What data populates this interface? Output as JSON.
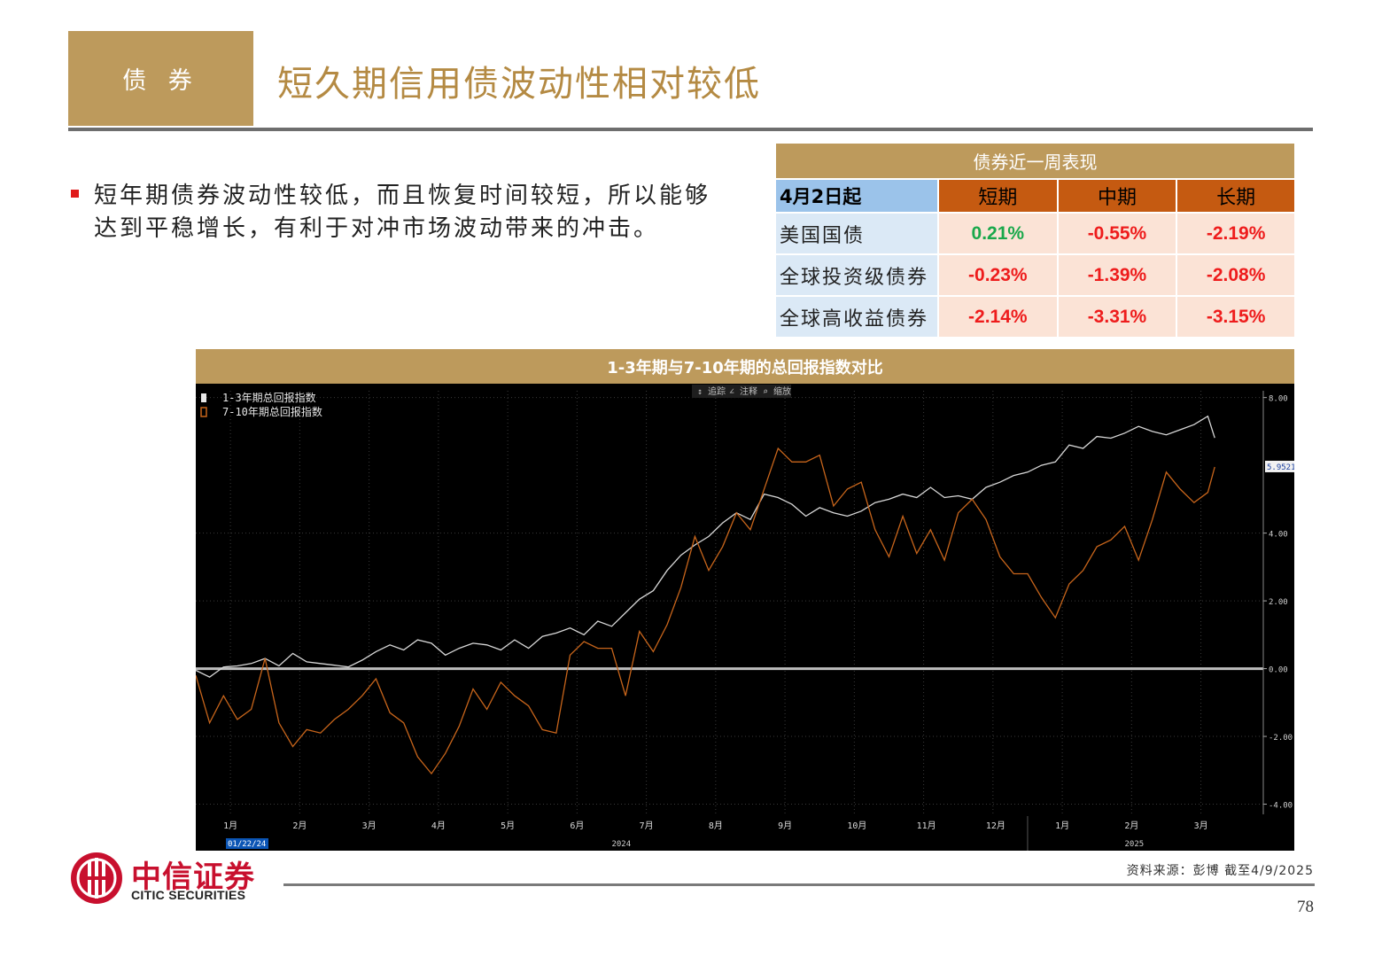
{
  "header": {
    "section": "债 券",
    "title": "短久期信用债波动性相对较低"
  },
  "bullet": {
    "text": "短年期债券波动性较低，而且恢复时间较短，所以能够达到平稳增长，有利于对冲市场波动带来的冲击。"
  },
  "table": {
    "title": "债券近一周表现",
    "date_label": "4月2日起",
    "columns": [
      "短期",
      "中期",
      "长期"
    ],
    "rows": [
      {
        "name": "美国国债",
        "values": [
          "0.21%",
          "-0.55%",
          "-2.19%"
        ]
      },
      {
        "name": "全球投资级债券",
        "values": [
          "-0.23%",
          "-1.39%",
          "-2.08%"
        ]
      },
      {
        "name": "全球高收益债券",
        "values": [
          "-2.14%",
          "-3.31%",
          "-3.15%"
        ]
      }
    ]
  },
  "toolbar": {
    "track": "追踪",
    "annotate": "注释",
    "zoom": "缩放"
  },
  "chart_data": {
    "type": "line",
    "title": "1-3年期与7-10年期的总回报指数对比",
    "x_labels": [
      "1月",
      "2月",
      "3月",
      "4月",
      "5月",
      "6月",
      "7月",
      "8月",
      "9月",
      "10月",
      "11月",
      "12月",
      "1月",
      "2月",
      "3月"
    ],
    "year_labels": [
      "2024",
      "2025"
    ],
    "date_tag": "01/22/24",
    "y_ticks": [
      "8.00",
      "4.00",
      "2.00",
      "0.00",
      "-2.00",
      "-4.00"
    ],
    "ylim": [
      -4.3,
      8.2
    ],
    "last_value_label": "5.9521",
    "grid": true,
    "legend_position": "top-left",
    "colors": {
      "series1": "#d8d8d8",
      "series2": "#c8651b",
      "zero": "#bdbdbd",
      "grid": "#3a3a3a"
    },
    "series": [
      {
        "name": "1-3年期总回报指数",
        "x": [
          0,
          0.2,
          0.4,
          0.6,
          0.8,
          1.0,
          1.2,
          1.4,
          1.6,
          1.8,
          2.0,
          2.2,
          2.4,
          2.6,
          2.8,
          3.0,
          3.2,
          3.4,
          3.6,
          3.8,
          4.0,
          4.2,
          4.4,
          4.6,
          4.8,
          5.0,
          5.2,
          5.4,
          5.6,
          5.8,
          6.0,
          6.2,
          6.4,
          6.6,
          6.8,
          7.0,
          7.2,
          7.4,
          7.6,
          7.8,
          8.0,
          8.2,
          8.4,
          8.6,
          8.8,
          9.0,
          9.2,
          9.4,
          9.6,
          9.8,
          10.0,
          10.2,
          10.4,
          10.6,
          10.8,
          11.0,
          11.2,
          11.4,
          11.6,
          11.8,
          12.0,
          12.2,
          12.4,
          12.6,
          12.8,
          13.0,
          13.2,
          13.4,
          13.6,
          13.8,
          14.0,
          14.2,
          14.4,
          14.6,
          14.7
        ],
        "values": [
          -0.05,
          -0.25,
          0.05,
          0.08,
          0.15,
          0.3,
          0.08,
          0.45,
          0.2,
          0.15,
          0.1,
          0.05,
          0.25,
          0.5,
          0.7,
          0.55,
          0.85,
          0.75,
          0.4,
          0.6,
          0.75,
          0.7,
          0.55,
          0.85,
          0.6,
          0.95,
          1.05,
          1.2,
          1.0,
          1.4,
          1.25,
          1.65,
          2.05,
          2.3,
          2.9,
          3.35,
          3.65,
          3.9,
          4.3,
          4.6,
          4.4,
          5.15,
          5.05,
          4.85,
          4.5,
          4.75,
          4.6,
          4.5,
          4.65,
          4.9,
          5.0,
          5.15,
          5.05,
          5.35,
          5.05,
          5.1,
          5.0,
          5.35,
          5.5,
          5.7,
          5.8,
          6.0,
          6.1,
          6.6,
          6.5,
          6.85,
          6.8,
          6.95,
          7.15,
          7.0,
          6.9,
          7.05,
          7.2,
          7.45,
          6.81
        ]
      },
      {
        "name": "7-10年期总回报指数",
        "x": [
          0,
          0.2,
          0.4,
          0.6,
          0.8,
          1.0,
          1.2,
          1.4,
          1.6,
          1.8,
          2.0,
          2.2,
          2.4,
          2.6,
          2.8,
          3.0,
          3.2,
          3.4,
          3.6,
          3.8,
          4.0,
          4.2,
          4.4,
          4.6,
          4.8,
          5.0,
          5.2,
          5.4,
          5.6,
          5.8,
          6.0,
          6.2,
          6.4,
          6.6,
          6.8,
          7.0,
          7.2,
          7.4,
          7.6,
          7.8,
          8.0,
          8.2,
          8.4,
          8.6,
          8.8,
          9.0,
          9.2,
          9.4,
          9.6,
          9.8,
          10.0,
          10.2,
          10.4,
          10.6,
          10.8,
          11.0,
          11.2,
          11.4,
          11.6,
          11.8,
          12.0,
          12.2,
          12.4,
          12.6,
          12.8,
          13.0,
          13.2,
          13.4,
          13.6,
          13.8,
          14.0,
          14.2,
          14.4,
          14.6,
          14.7
        ],
        "values": [
          -0.2,
          -1.6,
          -0.8,
          -1.5,
          -1.2,
          0.3,
          -1.6,
          -2.3,
          -1.8,
          -1.9,
          -1.5,
          -1.2,
          -0.8,
          -0.3,
          -1.3,
          -1.6,
          -2.6,
          -3.1,
          -2.5,
          -1.7,
          -0.6,
          -1.2,
          -0.4,
          -0.8,
          -1.1,
          -1.8,
          -1.9,
          0.4,
          0.8,
          0.6,
          0.6,
          -0.8,
          1.1,
          0.5,
          1.3,
          2.4,
          3.9,
          2.9,
          3.6,
          4.6,
          4.1,
          5.3,
          6.5,
          6.1,
          6.1,
          6.3,
          4.8,
          5.3,
          5.5,
          4.1,
          3.3,
          4.5,
          3.4,
          4.1,
          3.2,
          4.6,
          5.0,
          4.4,
          3.3,
          2.8,
          2.8,
          2.1,
          1.5,
          2.5,
          2.9,
          3.6,
          3.8,
          4.2,
          3.2,
          4.4,
          5.8,
          5.3,
          4.9,
          5.2,
          5.9521
        ]
      }
    ]
  },
  "footer": {
    "logo_cn": "中信证券",
    "logo_en": "CITIC SECURITIES",
    "source": "资料来源：彭博 截至4/9/2025",
    "page_number": "78"
  }
}
